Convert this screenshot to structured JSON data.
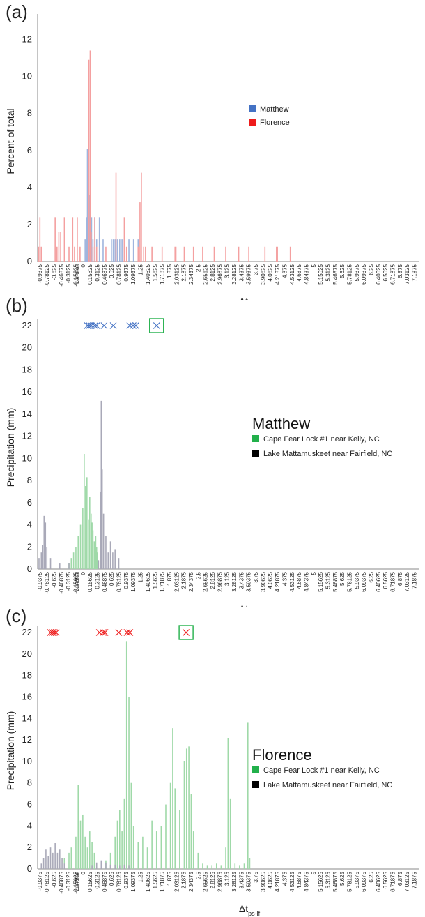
{
  "panels": {
    "a": {
      "label": "(a)"
    },
    "b": {
      "label": "(b)",
      "storm_title": "Matthew"
    },
    "c": {
      "label": "(c)",
      "storm_title": "Florence"
    }
  },
  "x_tick_labels": [
    "-0.9375",
    "-0.78125",
    "-0.625",
    "-0.46875",
    "-0.3125",
    "-0.15625",
    "Landfall",
    "0",
    "0.15625",
    "0.3125",
    "0.46875",
    "0.625",
    "0.78125",
    "0.9375",
    "1.09375",
    "1.25",
    "1.40625",
    "1.5625",
    "1.71875",
    "1.875",
    "2.03125",
    "2.1875",
    "2.34375",
    "2.5",
    "2.65625",
    "2.8125",
    "2.96875",
    "3.125",
    "3.28125",
    "3.4375",
    "3.59375",
    "3.75",
    "3.90625",
    "4.0625",
    "4.21875",
    "4.375",
    "4.53125",
    "4.6875",
    "4.84375",
    "5",
    "5.15625",
    "5.3125",
    "5.46875",
    "5.625",
    "5.78125",
    "5.9375",
    "6.09375",
    "6.25",
    "6.40625",
    "6.5625",
    "6.71875",
    "6.875",
    "7.03125",
    "7.1875"
  ],
  "x_title_main": "Δt",
  "x_title_sub": "ps-lf",
  "colors": {
    "matthew": "#4472c4",
    "matthew_bar": "#9fb4dd",
    "florence": "#ee1c1c",
    "florence_bar": "#f4a0a0",
    "cape_fear": "#22b04b",
    "cape_fear_bar": "#9fd9a8",
    "mattamuskeet": "#000000",
    "mattamuskeet_bar": "#a9a9b8",
    "box": "#22b04b"
  },
  "chart_data": [
    {
      "type": "bar",
      "panel": "a",
      "ylabel": "Percent of total",
      "xlabel": "Δt ps-lf",
      "ylim": [
        0,
        13
      ],
      "yticks": [
        0,
        2,
        4,
        6,
        8,
        10,
        12
      ],
      "legend": [
        "Matthew",
        "Florence"
      ],
      "legend_placement": "right-middle",
      "series": [
        {
          "name": "Matthew",
          "points": [
            [
              0.05,
              1.2
            ],
            [
              0.08,
              2.4
            ],
            [
              0.1,
              6.1
            ],
            [
              0.12,
              8.5
            ],
            [
              0.14,
              3.6
            ],
            [
              0.16,
              1.2
            ],
            [
              0.19,
              2.4
            ],
            [
              0.22,
              1.2
            ],
            [
              0.26,
              2.4
            ],
            [
              0.3,
              1.2
            ],
            [
              0.36,
              2.4
            ],
            [
              0.44,
              1.2
            ],
            [
              0.62,
              1.2
            ],
            [
              0.66,
              1.2
            ],
            [
              0.7,
              1.2
            ],
            [
              0.75,
              1.2
            ],
            [
              0.8,
              1.2
            ],
            [
              0.85,
              1.2
            ],
            [
              0.9,
              1.2
            ],
            [
              1.0,
              1.2
            ],
            [
              1.1,
              1.2
            ],
            [
              1.2,
              1.2
            ]
          ]
        },
        {
          "name": "Florence",
          "points": [
            [
              -0.96,
              0.8
            ],
            [
              -0.93,
              2.4
            ],
            [
              -0.9,
              0.8
            ],
            [
              -0.6,
              2.4
            ],
            [
              -0.56,
              0.8
            ],
            [
              -0.52,
              1.6
            ],
            [
              -0.48,
              1.6
            ],
            [
              -0.4,
              2.4
            ],
            [
              -0.3,
              0.8
            ],
            [
              -0.22,
              2.4
            ],
            [
              -0.18,
              0.8
            ],
            [
              -0.12,
              2.4
            ],
            [
              -0.06,
              0.8
            ],
            [
              0.13,
              10.9
            ],
            [
              0.16,
              11.4
            ],
            [
              0.18,
              1.6
            ],
            [
              0.22,
              0.8
            ],
            [
              0.26,
              2.4
            ],
            [
              0.3,
              0.8
            ],
            [
              0.5,
              0.8
            ],
            [
              0.72,
              4.8
            ],
            [
              0.9,
              2.4
            ],
            [
              0.95,
              0.8
            ],
            [
              1.2,
              0.8
            ],
            [
              1.24,
              3.2
            ],
            [
              1.27,
              4.8
            ],
            [
              1.32,
              0.8
            ],
            [
              1.36,
              0.8
            ],
            [
              1.5,
              0.8
            ],
            [
              1.72,
              0.8
            ],
            [
              2.0,
              0.8
            ],
            [
              2.02,
              0.8
            ],
            [
              2.2,
              0.8
            ],
            [
              2.4,
              0.8
            ],
            [
              2.6,
              0.8
            ],
            [
              2.85,
              0.8
            ],
            [
              3.1,
              0.8
            ],
            [
              3.38,
              0.8
            ],
            [
              3.6,
              0.8
            ],
            [
              3.95,
              0.8
            ],
            [
              4.2,
              0.8
            ],
            [
              4.22,
              0.8
            ],
            [
              4.5,
              0.8
            ]
          ]
        }
      ]
    },
    {
      "type": "bar",
      "panel": "b",
      "ylabel": "Precipitation (mm)",
      "xlabel": "Δt ps-lf",
      "ylim": [
        0,
        22
      ],
      "yticks": [
        0,
        2,
        4,
        6,
        8,
        10,
        12,
        14,
        16,
        18,
        20,
        22
      ],
      "legend": [
        "Cape Fear Lock #1 near Kelly, NC",
        "Lake Mattamuskeet near Fairfield, NC"
      ],
      "legend_placement": "right-middle",
      "series": [
        {
          "name": "Cape Fear Lock #1 near Kelly, NC",
          "points": [
            [
              -0.3,
              0.5
            ],
            [
              -0.25,
              1.0
            ],
            [
              -0.2,
              1.5
            ],
            [
              -0.15,
              2.0
            ],
            [
              -0.1,
              3.0
            ],
            [
              -0.05,
              4.0
            ],
            [
              0.0,
              5.5
            ],
            [
              0.03,
              10.4
            ],
            [
              0.06,
              7.5
            ],
            [
              0.09,
              8.3
            ],
            [
              0.12,
              4.5
            ],
            [
              0.15,
              6.5
            ],
            [
              0.18,
              5.0
            ],
            [
              0.2,
              4.2
            ],
            [
              0.22,
              3.5
            ],
            [
              0.25,
              2.5
            ],
            [
              0.28,
              3.0
            ],
            [
              0.3,
              2.0
            ],
            [
              0.32,
              1.5
            ]
          ]
        },
        {
          "name": "Lake Mattamuskeet near Fairfield, NC",
          "points": [
            [
              -0.95,
              1.0
            ],
            [
              -0.9,
              1.5
            ],
            [
              -0.87,
              2.2
            ],
            [
              -0.84,
              4.8
            ],
            [
              -0.81,
              4.2
            ],
            [
              -0.78,
              2.0
            ],
            [
              -0.7,
              1.0
            ],
            [
              -0.5,
              0.5
            ],
            [
              -0.3,
              0.5
            ],
            [
              0.34,
              0.8
            ],
            [
              0.38,
              7.0
            ],
            [
              0.4,
              15.2
            ],
            [
              0.42,
              9.0
            ],
            [
              0.45,
              5.0
            ],
            [
              0.5,
              3.0
            ],
            [
              0.55,
              1.5
            ],
            [
              0.6,
              2.5
            ],
            [
              0.65,
              1.5
            ],
            [
              0.7,
              1.8
            ],
            [
              0.78,
              1.0
            ]
          ]
        }
      ],
      "markers": {
        "y": 22,
        "x": [
          0.1,
          0.14,
          0.18,
          0.26,
          0.3,
          0.46,
          0.66,
          1.02,
          1.09,
          1.15
        ],
        "boxed_x": 1.6
      }
    },
    {
      "type": "bar",
      "panel": "c",
      "ylabel": "Precipitation (mm)",
      "xlabel": "Δt ps-lf",
      "ylim": [
        0,
        22
      ],
      "yticks": [
        0,
        2,
        4,
        6,
        8,
        10,
        12,
        14,
        16,
        18,
        20,
        22
      ],
      "legend": [
        "Cape Fear Lock #1 near Kelly, NC",
        "Lake Mattamuskeet near Fairfield, NC"
      ],
      "legend_placement": "right-middle",
      "series": [
        {
          "name": "Cape Fear Lock #1 near Kelly, NC",
          "points": [
            [
              -0.4,
              1.0
            ],
            [
              -0.3,
              1.5
            ],
            [
              -0.25,
              2.0
            ],
            [
              -0.15,
              3.0
            ],
            [
              -0.1,
              7.8
            ],
            [
              -0.05,
              4.5
            ],
            [
              0.0,
              5.0
            ],
            [
              0.05,
              3.0
            ],
            [
              0.1,
              2.0
            ],
            [
              0.15,
              3.5
            ],
            [
              0.2,
              2.5
            ],
            [
              0.25,
              1.5
            ],
            [
              0.5,
              0.8
            ],
            [
              0.6,
              1.5
            ],
            [
              0.7,
              3.0
            ],
            [
              0.75,
              4.5
            ],
            [
              0.8,
              5.5
            ],
            [
              0.85,
              3.5
            ],
            [
              0.9,
              6.5
            ],
            [
              0.95,
              21.2
            ],
            [
              1.0,
              16.0
            ],
            [
              1.05,
              8.0
            ],
            [
              1.1,
              4.0
            ],
            [
              1.2,
              2.5
            ],
            [
              1.3,
              3.0
            ],
            [
              1.4,
              2.0
            ],
            [
              1.5,
              4.5
            ],
            [
              1.6,
              3.5
            ],
            [
              1.7,
              4.0
            ],
            [
              1.8,
              6.0
            ],
            [
              1.9,
              8.0
            ],
            [
              1.95,
              13.1
            ],
            [
              2.0,
              7.5
            ],
            [
              2.1,
              5.5
            ],
            [
              2.2,
              10.0
            ],
            [
              2.25,
              11.2
            ],
            [
              2.3,
              11.4
            ],
            [
              2.35,
              7.0
            ],
            [
              2.4,
              3.5
            ],
            [
              2.5,
              1.5
            ],
            [
              2.6,
              0.5
            ],
            [
              2.7,
              0.3
            ],
            [
              2.8,
              0.3
            ],
            [
              2.9,
              0.5
            ],
            [
              3.0,
              0.3
            ],
            [
              3.1,
              2.0
            ],
            [
              3.15,
              12.2
            ],
            [
              3.2,
              6.5
            ],
            [
              3.3,
              0.5
            ],
            [
              3.4,
              0.3
            ],
            [
              3.5,
              0.5
            ],
            [
              3.58,
              13.6
            ],
            [
              3.62,
              1.0
            ]
          ]
        },
        {
          "name": "Lake Mattamuskeet near Fairfield, NC",
          "points": [
            [
              -0.9,
              0.5
            ],
            [
              -0.85,
              1.0
            ],
            [
              -0.8,
              1.8
            ],
            [
              -0.75,
              1.2
            ],
            [
              -0.7,
              2.0
            ],
            [
              -0.65,
              1.5
            ],
            [
              -0.6,
              2.4
            ],
            [
              -0.55,
              1.5
            ],
            [
              -0.5,
              1.8
            ],
            [
              -0.45,
              1.0
            ],
            [
              -0.4,
              0.5
            ],
            [
              0.2,
              0.3
            ],
            [
              0.3,
              0.6
            ],
            [
              0.4,
              0.8
            ],
            [
              0.5,
              0.6
            ],
            [
              0.6,
              0.4
            ],
            [
              0.7,
              0.4
            ],
            [
              0.8,
              0.3
            ],
            [
              0.9,
              0.4
            ],
            [
              1.0,
              0.3
            ]
          ]
        }
      ],
      "markers": {
        "y": 22,
        "x": [
          -0.7,
          -0.66,
          -0.62,
          -0.58,
          0.36,
          0.44,
          0.48,
          0.78,
          0.96,
          1.02
        ],
        "boxed_x": 2.24
      }
    }
  ]
}
